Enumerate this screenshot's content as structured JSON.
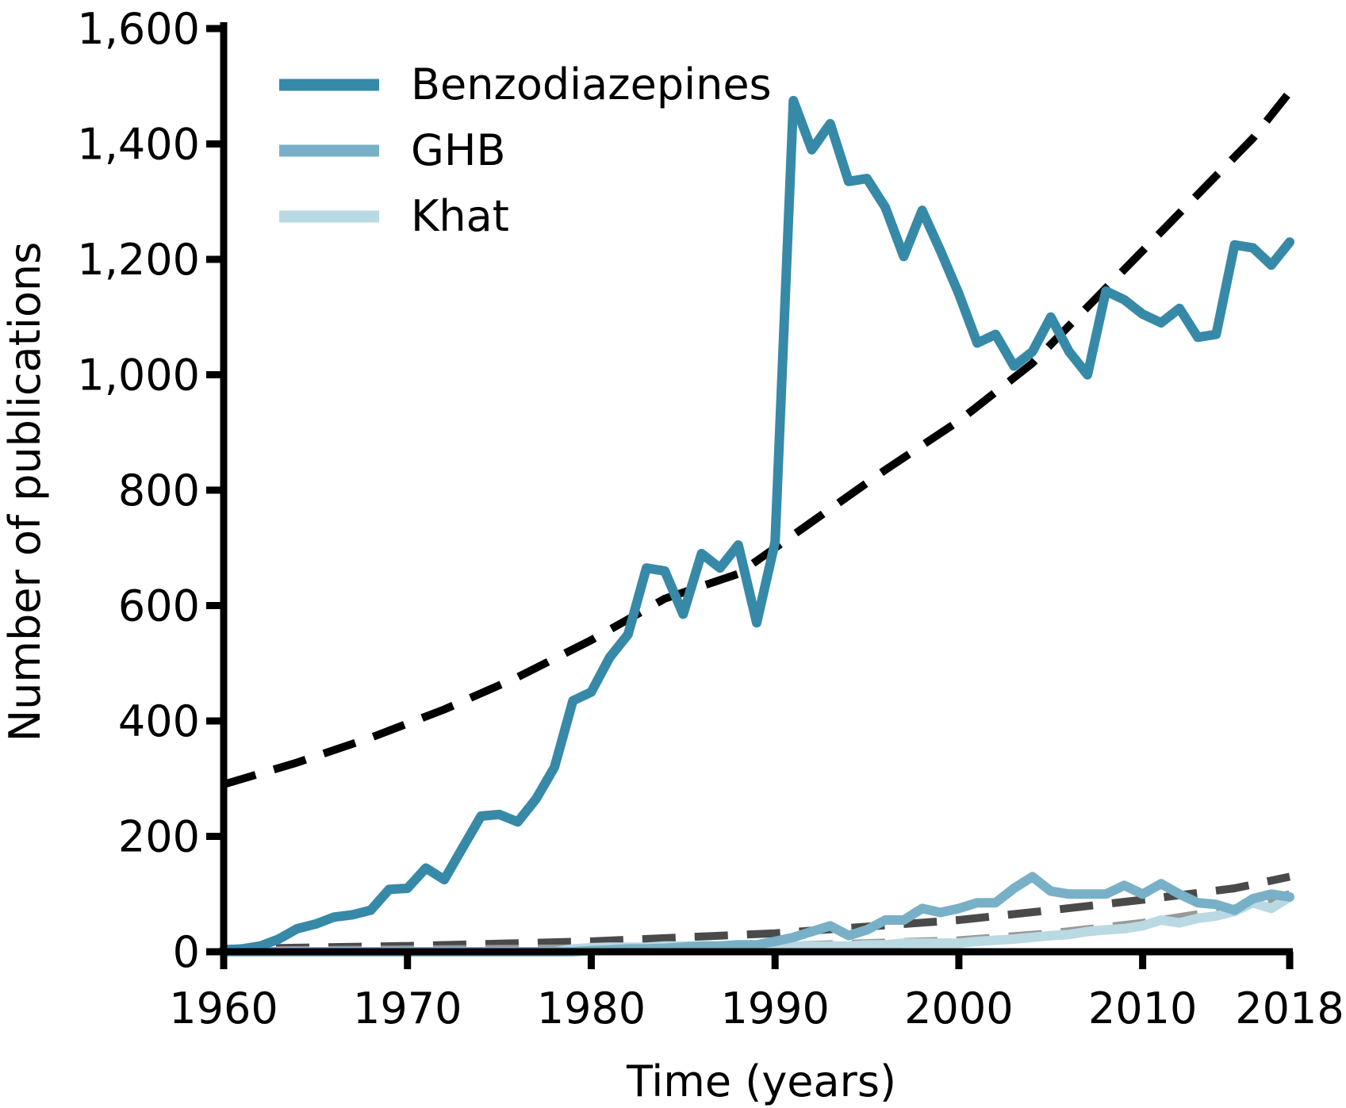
{
  "chart_data": {
    "type": "line",
    "xlabel": "Time (years)",
    "ylabel": "Number of publications",
    "xlim": [
      1960,
      2018
    ],
    "ylim": [
      0,
      1600
    ],
    "xticks": [
      1960,
      1970,
      1980,
      1990,
      2000,
      2010,
      2018
    ],
    "xtick_labels": [
      "1960",
      "1970",
      "1980",
      "1990",
      "2000",
      "2010",
      "2018"
    ],
    "yticks": [
      0,
      200,
      400,
      600,
      800,
      1000,
      1200,
      1400,
      1600
    ],
    "ytick_labels": [
      "0",
      "200",
      "400",
      "600",
      "800",
      "1,000",
      "1,200",
      "1,400",
      "1,600"
    ],
    "legend_position": "top-left",
    "grid": false,
    "x": [
      1960,
      1961,
      1962,
      1963,
      1964,
      1965,
      1966,
      1967,
      1968,
      1969,
      1970,
      1971,
      1972,
      1973,
      1974,
      1975,
      1976,
      1977,
      1978,
      1979,
      1980,
      1981,
      1982,
      1983,
      1984,
      1985,
      1986,
      1987,
      1988,
      1989,
      1990,
      1991,
      1992,
      1993,
      1994,
      1995,
      1996,
      1997,
      1998,
      1999,
      2000,
      2001,
      2002,
      2003,
      2004,
      2005,
      2006,
      2007,
      2008,
      2009,
      2010,
      2011,
      2012,
      2013,
      2014,
      2015,
      2016,
      2017,
      2018
    ],
    "series": [
      {
        "name": "Benzodiazepines",
        "color": "#3789a8",
        "values": [
          3,
          5,
          10,
          22,
          40,
          48,
          60,
          64,
          72,
          108,
          110,
          145,
          125,
          180,
          235,
          238,
          225,
          265,
          320,
          435,
          450,
          510,
          550,
          665,
          660,
          585,
          690,
          665,
          705,
          570,
          710,
          1475,
          1390,
          1435,
          1335,
          1340,
          1290,
          1205,
          1285,
          1215,
          1140,
          1055,
          1070,
          1015,
          1040,
          1100,
          1040,
          1000,
          1145,
          1130,
          1105,
          1090,
          1115,
          1065,
          1070,
          1225,
          1220,
          1190,
          1230
        ]
      },
      {
        "name": "GHB",
        "color": "#78b0c7",
        "values": [
          0,
          0,
          0,
          0,
          0,
          0,
          0,
          0,
          0,
          0,
          0,
          0,
          0,
          0,
          0,
          0,
          0,
          0,
          0,
          0,
          2,
          3,
          5,
          5,
          6,
          8,
          10,
          10,
          12,
          12,
          18,
          25,
          35,
          45,
          28,
          38,
          55,
          55,
          75,
          68,
          75,
          85,
          85,
          110,
          130,
          105,
          100,
          100,
          100,
          115,
          100,
          118,
          100,
          85,
          82,
          72,
          92,
          100,
          95
        ]
      },
      {
        "name": "Khat",
        "color": "#b9d9e3",
        "values": [
          0,
          0,
          0,
          0,
          0,
          0,
          0,
          0,
          0,
          0,
          0,
          0,
          0,
          0,
          0,
          0,
          0,
          0,
          0,
          5,
          7,
          8,
          8,
          8,
          10,
          10,
          10,
          8,
          10,
          10,
          8,
          10,
          10,
          10,
          10,
          12,
          12,
          15,
          15,
          15,
          15,
          18,
          20,
          22,
          25,
          28,
          30,
          35,
          38,
          40,
          45,
          55,
          50,
          58,
          62,
          70,
          85,
          75,
          95
        ]
      }
    ],
    "trends": [
      {
        "for": "Benzodiazepines",
        "color": "#000000",
        "x": [
          1960,
          1964,
          1968,
          1972,
          1976,
          1980,
          1984,
          1988,
          1990,
          1992,
          1996,
          2000,
          2004,
          2008,
          2012,
          2016,
          2018
        ],
        "values": [
          290,
          328,
          371,
          420,
          476,
          540,
          612,
          655,
          700,
          745,
          835,
          920,
          1020,
          1150,
          1280,
          1410,
          1490
        ]
      },
      {
        "for": "GHB",
        "color": "#4a4a4a",
        "x": [
          1960,
          1970,
          1980,
          1990,
          2000,
          2005,
          2010,
          2015,
          2018
        ],
        "values": [
          5,
          10,
          18,
          32,
          55,
          72,
          90,
          110,
          130
        ]
      },
      {
        "for": "Khat",
        "color": "#999999",
        "x": [
          1960,
          1970,
          1980,
          1990,
          2000,
          2005,
          2010,
          2015,
          2018
        ],
        "values": [
          2,
          4,
          6,
          10,
          20,
          32,
          50,
          75,
          100
        ]
      }
    ]
  }
}
